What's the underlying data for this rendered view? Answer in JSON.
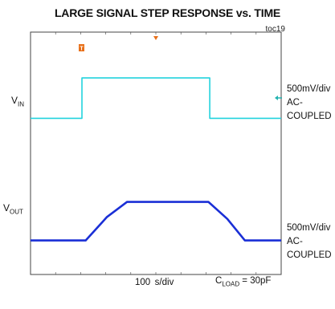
{
  "title": "LARGE SIGNAL STEP RESPONSE vs. TIME",
  "figure_id": "toc19",
  "colors": {
    "vin": "#22d3dd",
    "vout": "#1a2fd6",
    "trigger": "#e8701a",
    "channel_marker": "#22b3b0",
    "frame": "#444444"
  },
  "labels": {
    "vin_main": "V",
    "vin_sub": "IN",
    "vout_main": "V",
    "vout_sub": "OUT",
    "ch1_scale": "500mV/div",
    "ch1_coupling_1": "AC-",
    "ch1_coupling_2": "COUPLED",
    "ch2_scale": "500mV/div",
    "ch2_coupling_1": "AC-",
    "ch2_coupling_2": "COUPLED",
    "timebase": "100 \u0001 s/div",
    "timebase_display": "100  s/div",
    "cload_main": "C",
    "cload_sub": "LOAD",
    "cload_value": " = 30pF"
  },
  "icons": {
    "trigger": "trigger-marker-icon",
    "trigger_pos": "trigger-position-icon",
    "channel": "channel-offset-arrow-icon"
  },
  "chart_data": {
    "type": "line",
    "title": "LARGE SIGNAL STEP RESPONSE vs. TIME",
    "xlabel": "100 μs/div",
    "x_unit": "div",
    "xlim": [
      0,
      10
    ],
    "grid": false,
    "series": [
      {
        "name": "VIN",
        "scale": "500mV/div",
        "coupling": "AC-COUPLED",
        "ylim_div": [
          -4,
          4
        ],
        "x": [
          0,
          2.05,
          2.05,
          7.15,
          7.15,
          10
        ],
        "y": [
          -1.0,
          -1.0,
          1.15,
          1.15,
          -1.0,
          -1.0
        ]
      },
      {
        "name": "VOUT",
        "scale": "500mV/div",
        "coupling": "AC-COUPLED",
        "ylim_div": [
          -4,
          4
        ],
        "x": [
          0,
          2.2,
          3.05,
          3.85,
          7.1,
          7.85,
          8.55,
          10
        ],
        "y": [
          -1.35,
          -1.35,
          -0.1,
          0.7,
          0.7,
          -0.2,
          -1.35,
          -1.35
        ]
      }
    ],
    "annotations": [
      "C_LOAD = 30pF"
    ]
  }
}
